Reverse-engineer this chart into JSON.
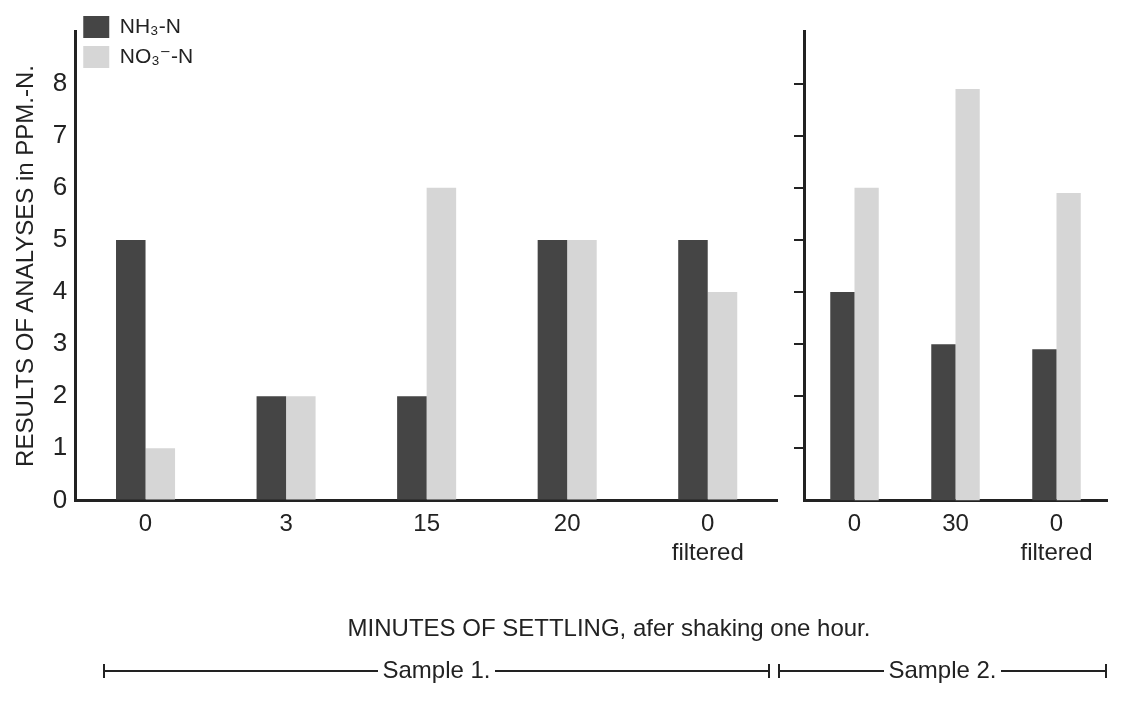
{
  "chart_data": [
    {
      "type": "bar",
      "xlabel": "MINUTES OF SETTLING, afer shaking one hour.",
      "ylabel": "RESULTS OF ANALYSES in PPM.-N.",
      "categories": [
        "0",
        "3",
        "15",
        "20",
        "0\nfiltered"
      ],
      "series": [
        {
          "name": "NH₃-N",
          "color": "#454545",
          "values": [
            5,
            2,
            2,
            5,
            5
          ]
        },
        {
          "name": "NO₃⁻-N",
          "color": "#d6d6d6",
          "values": [
            1,
            2,
            6,
            5,
            4
          ]
        }
      ],
      "ylim": [
        0,
        9
      ],
      "yticks": [
        0,
        1,
        2,
        3,
        4,
        5,
        6,
        7,
        8
      ],
      "legend": "top left",
      "annotations": [
        "Sample 1."
      ]
    },
    {
      "type": "bar",
      "categories": [
        "0",
        "30",
        "0\nfiltered"
      ],
      "series": [
        {
          "color": "#454545",
          "values": [
            4,
            3,
            2.9
          ]
        },
        {
          "color": "#d6d6d6",
          "values": [
            6,
            7.9,
            5.9
          ]
        }
      ],
      "ylim": [
        0,
        9
      ],
      "yticks": [
        {
          "value": 1,
          "label": null
        },
        {
          "value": 2,
          "label": null
        },
        {
          "value": 3,
          "label": null
        },
        {
          "value": 4,
          "label": null
        },
        {
          "value": 5,
          "label": null
        },
        {
          "value": 6,
          "label": null
        },
        {
          "value": 7,
          "label": null
        },
        {
          "value": 8,
          "label": null
        }
      ],
      "tick_labels": "x",
      "annotations": [
        "Sample 2."
      ]
    }
  ]
}
